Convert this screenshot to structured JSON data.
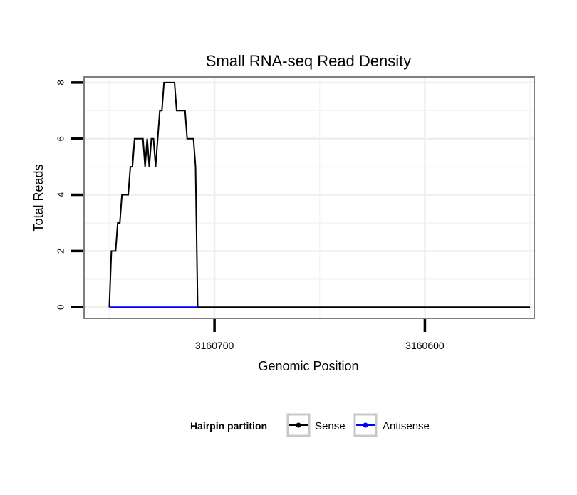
{
  "chart_data": {
    "type": "line",
    "title": "Small RNA-seq Read Density",
    "xlabel": "Genomic Position",
    "ylabel": "Total Reads",
    "x_reversed": true,
    "xlim": [
      3160762,
      3160548
    ],
    "ylim": [
      -0.4,
      8.2
    ],
    "x_ticks": [
      3160700,
      3160600
    ],
    "x_tick_labels": [
      "3160700",
      "3160600"
    ],
    "y_ticks": [
      0,
      2,
      4,
      6,
      8
    ],
    "y_tick_labels": [
      "0",
      "2",
      "4",
      "6",
      "8"
    ],
    "grid": true,
    "legend": {
      "title": "Hairpin partition",
      "position": "bottom"
    },
    "series": [
      {
        "name": "Sense",
        "color": "#000000",
        "points": [
          [
            3160750,
            0
          ],
          [
            3160749,
            2
          ],
          [
            3160747,
            2
          ],
          [
            3160746,
            3
          ],
          [
            3160745,
            3
          ],
          [
            3160744,
            4
          ],
          [
            3160741,
            4
          ],
          [
            3160740,
            5
          ],
          [
            3160739,
            5
          ],
          [
            3160738,
            6
          ],
          [
            3160734,
            6
          ],
          [
            3160733,
            5
          ],
          [
            3160732,
            6
          ],
          [
            3160731,
            5
          ],
          [
            3160730,
            6
          ],
          [
            3160729,
            6
          ],
          [
            3160728,
            5
          ],
          [
            3160727,
            6
          ],
          [
            3160726,
            7
          ],
          [
            3160725,
            7
          ],
          [
            3160724,
            8
          ],
          [
            3160719,
            8
          ],
          [
            3160718,
            7
          ],
          [
            3160714,
            7
          ],
          [
            3160713,
            6
          ],
          [
            3160710,
            6
          ],
          [
            3160709,
            5
          ],
          [
            3160708,
            0
          ],
          [
            3160550,
            0
          ]
        ]
      },
      {
        "name": "Antisense",
        "color": "#0000ff",
        "points": [
          [
            3160750,
            0
          ],
          [
            3160708,
            0
          ]
        ]
      }
    ]
  }
}
